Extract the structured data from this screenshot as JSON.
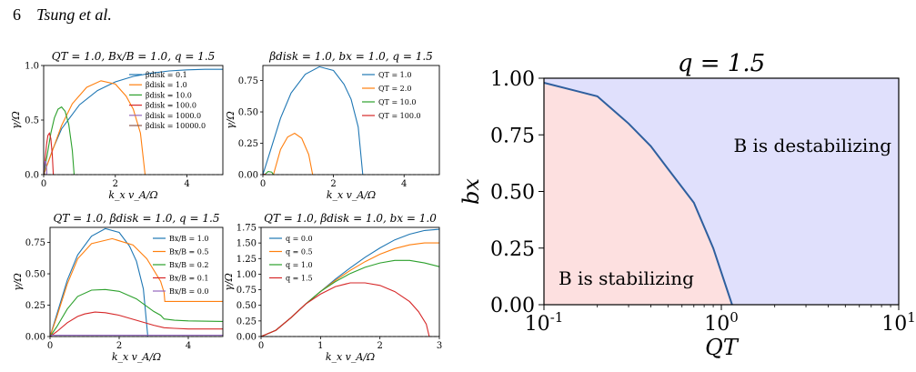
{
  "header": {
    "page_number": "6",
    "authors": "Tsung et al."
  },
  "chart_data": [
    {
      "type": "line",
      "title": "Q_T = 1.0, B_x/B = 1.0, q = 1.5",
      "xlabel": "k_x v_A/Ω",
      "ylabel": "γ/Ω",
      "xlim": [
        0,
        5
      ],
      "ylim": [
        0,
        1.0
      ],
      "xticks": [
        "0",
        "2",
        "4"
      ],
      "yticks": [
        "0.0",
        "0.5",
        "1.0"
      ],
      "legend_position": "upper-right",
      "series": [
        {
          "name": "β_disk = 0.1",
          "color": "#1f77b4",
          "x": [
            0,
            0.25,
            0.5,
            1.0,
            1.5,
            2.0,
            2.5,
            3.0,
            3.5,
            4.0,
            4.5,
            5.0
          ],
          "y": [
            0,
            0.23,
            0.42,
            0.64,
            0.77,
            0.85,
            0.9,
            0.93,
            0.95,
            0.96,
            0.965,
            0.965
          ]
        },
        {
          "name": "β_disk = 1.0",
          "color": "#ff7f0e",
          "x": [
            0,
            0.2,
            0.5,
            0.8,
            1.2,
            1.6,
            2.0,
            2.3,
            2.5,
            2.7,
            2.83
          ],
          "y": [
            0,
            0.18,
            0.45,
            0.65,
            0.8,
            0.86,
            0.83,
            0.72,
            0.6,
            0.38,
            0
          ]
        },
        {
          "name": "β_disk = 10.0",
          "color": "#2ca02c",
          "x": [
            0,
            0.1,
            0.2,
            0.3,
            0.4,
            0.5,
            0.6,
            0.7,
            0.8,
            0.85
          ],
          "y": [
            0,
            0.18,
            0.38,
            0.52,
            0.6,
            0.62,
            0.58,
            0.46,
            0.22,
            0
          ]
        },
        {
          "name": "β_disk = 100.0",
          "color": "#d62728",
          "x": [
            0,
            0.04,
            0.08,
            0.12,
            0.16,
            0.2,
            0.24,
            0.27
          ],
          "y": [
            0,
            0.14,
            0.28,
            0.36,
            0.38,
            0.33,
            0.18,
            0
          ]
        },
        {
          "name": "β_disk = 1000.0",
          "color": "#9467bd",
          "x": [
            0,
            0.02,
            0.04,
            0.06,
            0.08,
            0.09
          ],
          "y": [
            0,
            0.08,
            0.12,
            0.12,
            0.06,
            0
          ]
        },
        {
          "name": "β_disk = 10000.0",
          "color": "#8c564b",
          "x": [
            0,
            0.01,
            0.02,
            0.03
          ],
          "y": [
            0,
            0.03,
            0.03,
            0
          ]
        }
      ]
    },
    {
      "type": "line",
      "title": "β_disk = 1.0, b_x = 1.0, q = 1.5",
      "xlabel": "k_x v_A/Ω",
      "ylabel": "γ/Ω",
      "xlim": [
        0,
        5
      ],
      "ylim": [
        0,
        0.87
      ],
      "xticks": [
        "0",
        "2",
        "4"
      ],
      "yticks": [
        "0.00",
        "0.25",
        "0.50",
        "0.75"
      ],
      "legend_position": "upper-right",
      "series": [
        {
          "name": "Q_T = 1.0",
          "color": "#1f77b4",
          "x": [
            0,
            0.2,
            0.5,
            0.8,
            1.2,
            1.6,
            2.0,
            2.3,
            2.5,
            2.7,
            2.83
          ],
          "y": [
            0,
            0.18,
            0.45,
            0.65,
            0.8,
            0.86,
            0.83,
            0.72,
            0.6,
            0.38,
            0
          ]
        },
        {
          "name": "Q_T = 2.0",
          "color": "#ff7f0e",
          "x": [
            0.3,
            0.5,
            0.7,
            0.9,
            1.1,
            1.3,
            1.41
          ],
          "y": [
            0,
            0.2,
            0.3,
            0.33,
            0.29,
            0.16,
            0
          ]
        },
        {
          "name": "Q_T = 10.0",
          "color": "#2ca02c",
          "x": [
            0.05,
            0.15,
            0.25,
            0.3
          ],
          "y": [
            0,
            0.025,
            0.02,
            0
          ]
        },
        {
          "name": "Q_T = 100.0",
          "color": "#d62728",
          "x": [
            0,
            0.05,
            0.1
          ],
          "y": [
            0,
            0.003,
            0
          ]
        }
      ]
    },
    {
      "type": "line",
      "title": "Q_T = 1.0, β_disk = 1.0, q = 1.5",
      "xlabel": "k_x v_A/Ω",
      "ylabel": "γ/Ω",
      "xlim": [
        0,
        5
      ],
      "ylim": [
        0,
        0.87
      ],
      "xticks": [
        "0",
        "2",
        "4"
      ],
      "yticks": [
        "0.00",
        "0.25",
        "0.50",
        "0.75"
      ],
      "legend_position": "upper-right",
      "series": [
        {
          "name": "B_x/B = 1.0",
          "color": "#1f77b4",
          "x": [
            0,
            0.2,
            0.5,
            0.8,
            1.2,
            1.6,
            2.0,
            2.3,
            2.5,
            2.7,
            2.83
          ],
          "y": [
            0,
            0.18,
            0.45,
            0.65,
            0.8,
            0.86,
            0.83,
            0.72,
            0.6,
            0.38,
            0
          ]
        },
        {
          "name": "B_x/B = 0.5",
          "color": "#ff7f0e",
          "x": [
            0,
            0.2,
            0.5,
            0.8,
            1.2,
            1.8,
            2.4,
            2.8,
            3.2,
            3.3,
            3.32,
            3.6,
            4.0,
            5.0
          ],
          "y": [
            0,
            0.16,
            0.42,
            0.62,
            0.74,
            0.78,
            0.73,
            0.62,
            0.44,
            0.35,
            0.28,
            0.28,
            0.28,
            0.28
          ]
        },
        {
          "name": "B_x/B = 0.2",
          "color": "#2ca02c",
          "x": [
            0,
            0.2,
            0.5,
            0.8,
            1.2,
            1.6,
            2.0,
            2.5,
            3.0,
            3.2,
            3.3,
            3.6,
            4.0,
            5.0
          ],
          "y": [
            0,
            0.08,
            0.22,
            0.32,
            0.37,
            0.375,
            0.36,
            0.3,
            0.2,
            0.17,
            0.14,
            0.13,
            0.125,
            0.12
          ]
        },
        {
          "name": "B_x/B = 0.1",
          "color": "#d62728",
          "x": [
            0,
            0.2,
            0.5,
            0.8,
            1.0,
            1.3,
            1.6,
            2.0,
            2.5,
            3.0,
            3.3,
            3.6,
            4.0,
            5.0
          ],
          "y": [
            0,
            0.04,
            0.11,
            0.16,
            0.18,
            0.195,
            0.19,
            0.17,
            0.13,
            0.09,
            0.07,
            0.065,
            0.06,
            0.06
          ]
        },
        {
          "name": "B_x/B = 0.0",
          "color": "#9467bd",
          "x": [
            0,
            5.0
          ],
          "y": [
            0.01,
            0.01
          ]
        }
      ]
    },
    {
      "type": "line",
      "title": "Q_T = 1.0, β_disk = 1.0, b_x = 1.0",
      "xlabel": "k_x v_A/Ω",
      "ylabel": "γ/Ω",
      "xlim": [
        0,
        3
      ],
      "ylim": [
        0,
        1.75
      ],
      "xticks": [
        "0",
        "1",
        "2",
        "3"
      ],
      "yticks": [
        "0.00",
        "0.25",
        "0.50",
        "0.75",
        "1.00",
        "1.25",
        "1.50",
        "1.75"
      ],
      "legend_position": "upper-left",
      "series": [
        {
          "name": "q = 0.0",
          "color": "#1f77b4",
          "x": [
            0,
            0.25,
            0.5,
            0.75,
            1.0,
            1.25,
            1.5,
            1.75,
            2.0,
            2.25,
            2.5,
            2.75,
            3.0
          ],
          "y": [
            0,
            0.1,
            0.3,
            0.52,
            0.72,
            0.92,
            1.1,
            1.27,
            1.42,
            1.55,
            1.64,
            1.7,
            1.72
          ]
        },
        {
          "name": "q = 0.5",
          "color": "#ff7f0e",
          "x": [
            0,
            0.25,
            0.5,
            0.75,
            1.0,
            1.25,
            1.5,
            1.75,
            2.0,
            2.25,
            2.5,
            2.75,
            3.0
          ],
          "y": [
            0,
            0.1,
            0.3,
            0.52,
            0.72,
            0.9,
            1.06,
            1.2,
            1.32,
            1.41,
            1.47,
            1.5,
            1.5
          ]
        },
        {
          "name": "q = 1.0",
          "color": "#2ca02c",
          "x": [
            0,
            0.25,
            0.5,
            0.75,
            1.0,
            1.25,
            1.5,
            1.75,
            2.0,
            2.25,
            2.5,
            2.75,
            3.0
          ],
          "y": [
            0,
            0.1,
            0.3,
            0.52,
            0.72,
            0.88,
            1.01,
            1.11,
            1.18,
            1.22,
            1.22,
            1.18,
            1.12
          ]
        },
        {
          "name": "q = 1.5",
          "color": "#d62728",
          "x": [
            0,
            0.25,
            0.5,
            0.75,
            1.0,
            1.25,
            1.5,
            1.75,
            2.0,
            2.25,
            2.5,
            2.65,
            2.78,
            2.83
          ],
          "y": [
            0,
            0.1,
            0.3,
            0.52,
            0.68,
            0.8,
            0.86,
            0.86,
            0.82,
            0.72,
            0.56,
            0.4,
            0.2,
            0
          ]
        }
      ]
    },
    {
      "type": "area",
      "title": "q = 1.5",
      "xlabel": "Q_T",
      "ylabel": "b_x",
      "xscale": "log",
      "xlim": [
        0.1,
        10
      ],
      "ylim": [
        0,
        1.0
      ],
      "xticks": [
        "10^-1",
        "10^0",
        "10^1"
      ],
      "yticks": [
        "0.00",
        "0.25",
        "0.50",
        "0.75",
        "1.00"
      ],
      "boundary": {
        "x": [
          0.1,
          0.2,
          0.3,
          0.4,
          0.5,
          0.7,
          0.9,
          1.15
        ],
        "y": [
          0.98,
          0.92,
          0.8,
          0.7,
          0.6,
          0.45,
          0.25,
          0
        ]
      },
      "regions": [
        {
          "label": "B is stabilizing",
          "color": "#fde0e0"
        },
        {
          "label": "B is destabilizing",
          "color": "#e0e0fc"
        }
      ],
      "boundary_color": "#2f5f9e"
    }
  ]
}
